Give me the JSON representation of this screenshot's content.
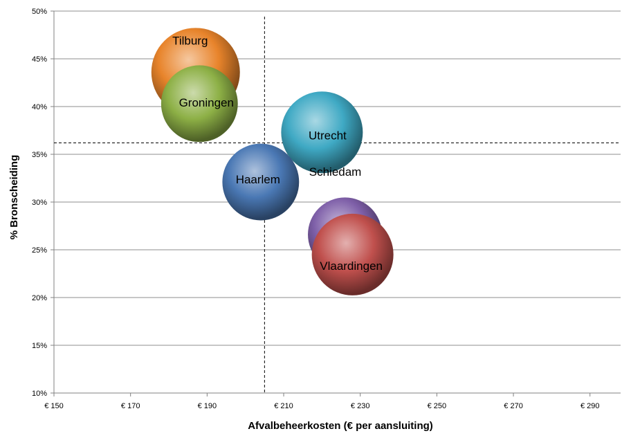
{
  "chart_data": {
    "type": "bubble",
    "xlabel": "Afvalbeheerkosten  (€ per aansluiting)",
    "ylabel": "% Bronscheiding",
    "xlim": [
      150,
      298
    ],
    "ylim": [
      10,
      50
    ],
    "x_ticks": [
      150,
      170,
      190,
      210,
      230,
      250,
      270,
      290
    ],
    "x_tick_labels": [
      "€ 150",
      "€ 170",
      "€ 190",
      "€ 210",
      "€ 230",
      "€ 250",
      "€ 270",
      "€ 290"
    ],
    "y_ticks": [
      10,
      15,
      20,
      25,
      30,
      35,
      40,
      45,
      50
    ],
    "y_tick_labels": [
      "10%",
      "15%",
      "20%",
      "25%",
      "30%",
      "35%",
      "40%",
      "45%",
      "50%"
    ],
    "grid": "horizontal",
    "reference_lines": {
      "x": 205,
      "y": 36.2
    },
    "points": [
      {
        "label": "Tilburg",
        "x": 187,
        "y": 43.6,
        "size": 1.0,
        "color": "#e8842b"
      },
      {
        "label": "Groningen",
        "x": 188,
        "y": 40.3,
        "size": 0.75,
        "color": "#8db046"
      },
      {
        "label": "Utrecht",
        "x": 220,
        "y": 37.3,
        "size": 0.85,
        "color": "#3fa9c4"
      },
      {
        "label": "Haarlem",
        "x": 204,
        "y": 32.1,
        "size": 0.75,
        "color": "#4a78b4"
      },
      {
        "label": "Schiedam",
        "x": 226,
        "y": 26.6,
        "size": 0.7,
        "color": "#7e5fa8"
      },
      {
        "label": "Vlaardingen",
        "x": 228,
        "y": 24.5,
        "size": 0.85,
        "color": "#c0504d"
      }
    ]
  }
}
